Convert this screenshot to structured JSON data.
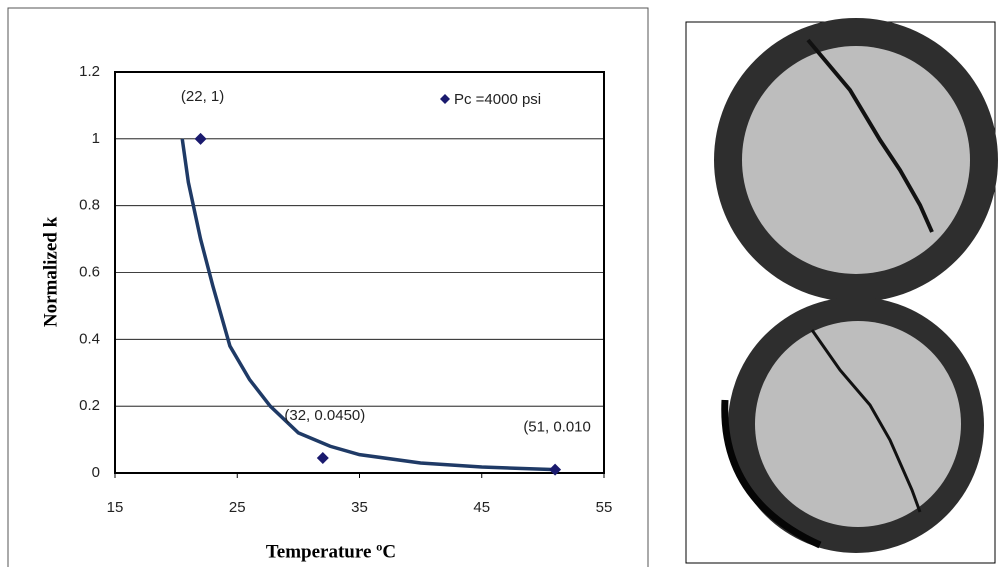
{
  "chart_data": {
    "type": "scatter",
    "x_label": "Temperature ºC",
    "y_label": "Normalized k",
    "series": [
      {
        "name": "Pc =4000 psi",
        "color": "#1a1a6e",
        "x": [
          22,
          32,
          51
        ],
        "values": [
          1,
          0.045,
          0.01
        ],
        "value_labels": [
          "(22, 1)",
          "(32, 0.0450)",
          "(51, 0.010"
        ]
      }
    ],
    "trendline": {
      "color": "#1f3a66",
      "x": [
        20.5,
        21,
        22,
        23,
        24.4,
        26,
        27.7,
        30,
        32.6,
        35,
        40,
        45,
        51
      ],
      "values": [
        1,
        0.87,
        0.7,
        0.56,
        0.38,
        0.28,
        0.2,
        0.12,
        0.08,
        0.055,
        0.03,
        0.018,
        0.01
      ]
    },
    "xlim": [
      15,
      55
    ],
    "xticks": [
      15,
      25,
      35,
      45,
      55
    ],
    "ylim": [
      0,
      1.2
    ],
    "yticks": [
      0,
      0.2,
      0.4,
      0.6,
      0.8,
      1,
      1.2
    ],
    "grid": true,
    "legend": "top-right"
  }
}
